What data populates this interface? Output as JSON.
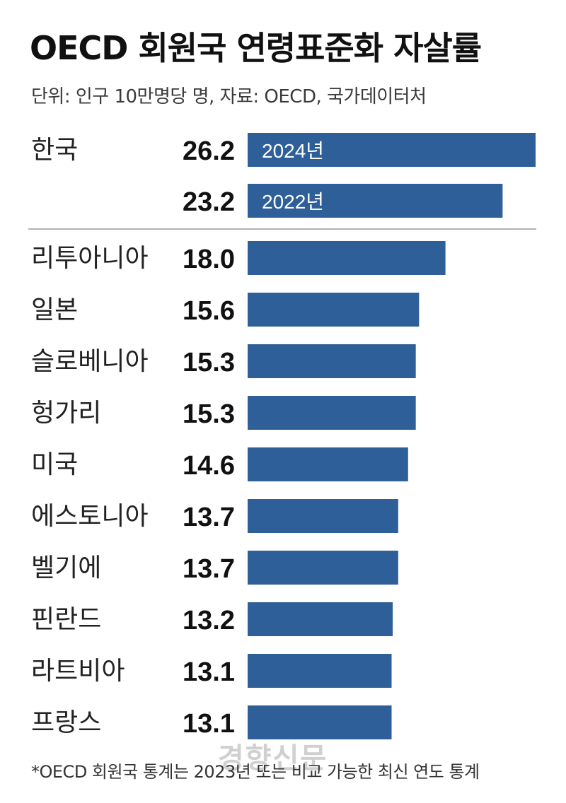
{
  "header": {
    "title": "OECD 회원국 연령표준화 자살률",
    "subtitle": "단위: 인구 10만명당 명, 자료: OECD, 국가데이터처"
  },
  "footer": {
    "footnote": "*OECD 회원국 통계는 2023년 또는 비교 가능한 최신 연도 통계",
    "watermark": "경향신문"
  },
  "colors": {
    "bar": "#2f5f98",
    "divider": "#999999"
  },
  "chart_data": {
    "type": "bar",
    "orientation": "horizontal",
    "title": "OECD 회원국 연령표준화 자살률",
    "unit": "인구 10만명당 명",
    "xlim": [
      0,
      26.2
    ],
    "grid": false,
    "korea": {
      "category": "한국",
      "bars": [
        {
          "label": "2024년",
          "value": 26.2
        },
        {
          "label": "2022년",
          "value": 23.2
        }
      ]
    },
    "categories": [
      "리투아니아",
      "일본",
      "슬로베니아",
      "헝가리",
      "미국",
      "에스토니아",
      "벨기에",
      "핀란드",
      "라트비아",
      "프랑스"
    ],
    "values": [
      18.0,
      15.6,
      15.3,
      15.3,
      14.6,
      13.7,
      13.7,
      13.2,
      13.1,
      13.1
    ]
  }
}
